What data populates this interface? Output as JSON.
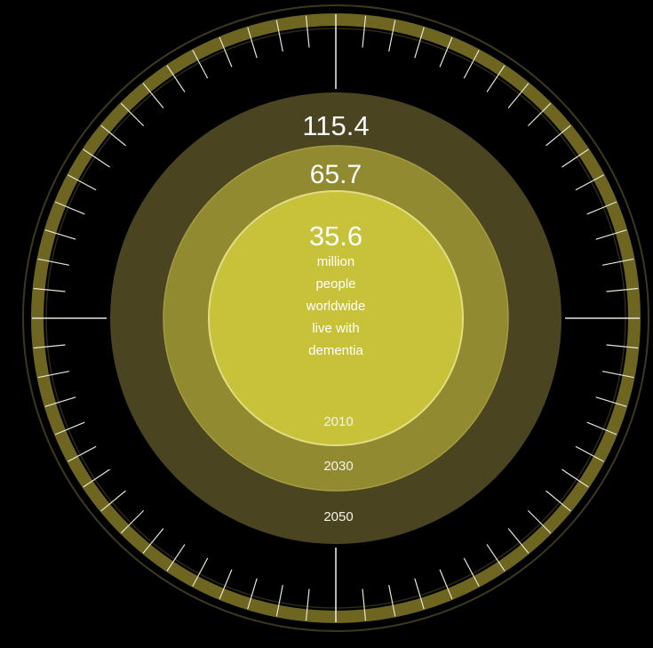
{
  "chart_data": {
    "type": "bubble",
    "series": [
      {
        "year": "2010",
        "value": 35.6,
        "value_label": "35.6"
      },
      {
        "year": "2030",
        "value": 65.7,
        "value_label": "65.7"
      },
      {
        "year": "2050",
        "value": 115.4,
        "value_label": "115.4"
      }
    ],
    "description_lines": [
      "million",
      "people",
      "worldwide",
      "live with",
      "dementia"
    ],
    "colors": {
      "background": "#000000",
      "ring_2050": "#4a4420",
      "ring_2030": "#928a30",
      "circle_2010": "#c8c13a",
      "circle_2010_border": "#e2dd82",
      "dial_band": "#6e6620",
      "tick": "#e6e6d8"
    }
  }
}
